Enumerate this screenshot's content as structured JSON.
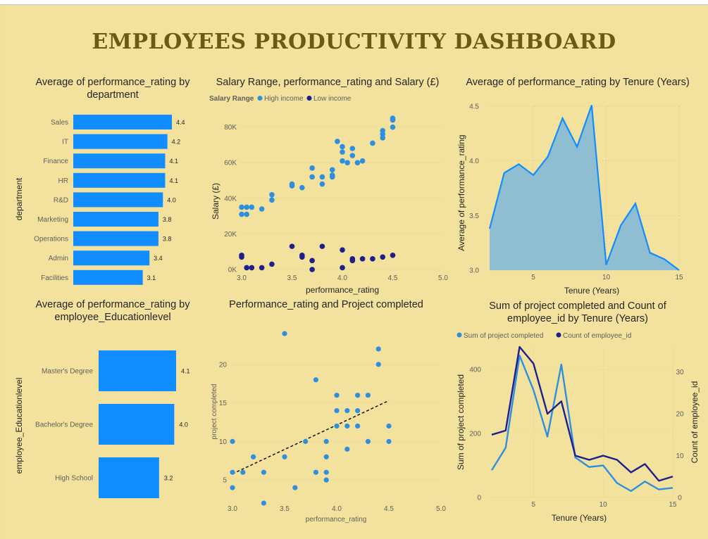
{
  "dashboard": {
    "title": "EMPLOYEES PRODUCTIVITY DASHBOARD"
  },
  "colors": {
    "accent": "#118DFF",
    "dark": "#1E1E8C",
    "area_fill": "#8FBDD1",
    "title": "#6A5A12",
    "background": "#F3E29D"
  },
  "chart_data": [
    {
      "id": "dept",
      "type": "bar",
      "orientation": "horizontal",
      "title": "Average of performance_rating by department",
      "ylabel": "department",
      "categories": [
        "Sales",
        "IT",
        "Finance",
        "HR",
        "R&D",
        "Marketing",
        "Operations",
        "Admin",
        "Facilities"
      ],
      "values": [
        4.4,
        4.2,
        4.1,
        4.1,
        4.0,
        3.8,
        3.8,
        3.4,
        3.1
      ],
      "value_labels": [
        "4.4",
        "4.2",
        "4.1",
        "4.1",
        "4.0",
        "3.8",
        "3.8",
        "3.4",
        "3.1"
      ],
      "color": "#118DFF"
    },
    {
      "id": "salary",
      "type": "scatter",
      "title": "Salary Range, performance_rating and Salary (£)",
      "legend_title": "Salary Range",
      "legend": "top-left",
      "xlabel": "performance_rating",
      "ylabel": "Salary (£)",
      "xlim": [
        3.0,
        5.0
      ],
      "ylim": [
        0,
        90000
      ],
      "xticks": [
        "3.0",
        "3.5",
        "4.0",
        "4.5",
        "5.0"
      ],
      "yticks": [
        "0K",
        "20K",
        "40K",
        "60K",
        "80K"
      ],
      "series": [
        {
          "name": "High income",
          "color": "#2E8FE0",
          "points": [
            [
              3.0,
              35000
            ],
            [
              3.0,
              31000
            ],
            [
              3.05,
              31000
            ],
            [
              3.05,
              35000
            ],
            [
              3.1,
              35000
            ],
            [
              3.2,
              34000
            ],
            [
              3.3,
              39000
            ],
            [
              3.3,
              42000
            ],
            [
              3.5,
              48000
            ],
            [
              3.5,
              47000
            ],
            [
              3.6,
              46000
            ],
            [
              3.7,
              52000
            ],
            [
              3.7,
              57000
            ],
            [
              3.8,
              52000
            ],
            [
              3.8,
              48000
            ],
            [
              3.9,
              52000
            ],
            [
              3.9,
              56000
            ],
            [
              3.9,
              53000
            ],
            [
              3.95,
              72000
            ],
            [
              4.0,
              69000
            ],
            [
              4.0,
              66000
            ],
            [
              4.0,
              61000
            ],
            [
              4.05,
              60000
            ],
            [
              4.1,
              68000
            ],
            [
              4.1,
              64000
            ],
            [
              4.15,
              60000
            ],
            [
              4.2,
              61000
            ],
            [
              4.3,
              71000
            ],
            [
              4.4,
              76000
            ],
            [
              4.4,
              74000
            ],
            [
              4.4,
              78000
            ],
            [
              4.5,
              85000
            ],
            [
              4.5,
              84000
            ],
            [
              4.5,
              80000
            ]
          ]
        },
        {
          "name": "Low income",
          "color": "#1E1E8C",
          "points": [
            [
              3.0,
              8000
            ],
            [
              3.0,
              7000
            ],
            [
              3.05,
              1000
            ],
            [
              3.1,
              1000
            ],
            [
              3.2,
              1000
            ],
            [
              3.3,
              3000
            ],
            [
              3.5,
              13000
            ],
            [
              3.6,
              7000
            ],
            [
              3.6,
              8000
            ],
            [
              3.7,
              5000
            ],
            [
              3.7,
              0
            ],
            [
              3.8,
              13000
            ],
            [
              4.0,
              11000
            ],
            [
              4.0,
              1000
            ],
            [
              4.1,
              6000
            ],
            [
              4.1,
              5000
            ],
            [
              4.2,
              6000
            ],
            [
              4.3,
              6000
            ],
            [
              4.4,
              7000
            ],
            [
              4.5,
              8000
            ]
          ]
        }
      ]
    },
    {
      "id": "tenure_area",
      "type": "area",
      "title": "Average of performance_rating by Tenure (Years)",
      "xlabel": "Tenure (Years)",
      "ylabel": "Average of performance_rating",
      "xlim": [
        2,
        15
      ],
      "ylim": [
        3.0,
        4.5
      ],
      "xticks": [
        "5",
        "10",
        "15"
      ],
      "yticks": [
        "3.0",
        "3.5",
        "4.0",
        "4.5"
      ],
      "x": [
        2,
        3,
        4,
        5,
        6,
        7,
        8,
        9,
        10,
        11,
        12,
        13,
        14,
        15
      ],
      "values": [
        3.38,
        3.89,
        3.97,
        3.87,
        4.04,
        4.39,
        4.13,
        4.51,
        3.05,
        3.41,
        3.61,
        3.16,
        3.1,
        3.0
      ]
    },
    {
      "id": "education",
      "type": "bar",
      "orientation": "horizontal",
      "title": "Average of performance_rating by employee_Educationlevel",
      "ylabel": "employee_Educationlevel",
      "categories": [
        "Master's Degree",
        "Bachelor's Degree",
        "High School"
      ],
      "values": [
        4.1,
        4.0,
        3.2
      ],
      "value_labels": [
        "4.1",
        "4.0",
        "3.2"
      ],
      "color": "#118DFF"
    },
    {
      "id": "projects",
      "type": "scatter",
      "title": "Performance_rating and Project completed",
      "xlabel": "performance_rating",
      "ylabel": "project completed",
      "xlim": [
        3.0,
        5.0
      ],
      "ylim": [
        2,
        23
      ],
      "xticks": [
        "3.0",
        "3.5",
        "4.0",
        "4.5",
        "5.0"
      ],
      "yticks": [
        "5",
        "10",
        "15",
        "20"
      ],
      "trend_line": [
        [
          3.0,
          5.8
        ],
        [
          4.5,
          15.3
        ]
      ],
      "series": [
        {
          "name": "",
          "color": "#2E8FE0",
          "points": [
            [
              3.0,
              10
            ],
            [
              3.0,
              4
            ],
            [
              3.0,
              6
            ],
            [
              3.1,
              6
            ],
            [
              3.2,
              8
            ],
            [
              3.3,
              6
            ],
            [
              3.3,
              2
            ],
            [
              3.5,
              24
            ],
            [
              3.5,
              8
            ],
            [
              3.6,
              4
            ],
            [
              3.7,
              10
            ],
            [
              3.8,
              18
            ],
            [
              3.8,
              6
            ],
            [
              3.9,
              8
            ],
            [
              3.9,
              10
            ],
            [
              3.9,
              6
            ],
            [
              3.9,
              5
            ],
            [
              4.0,
              16
            ],
            [
              4.0,
              14
            ],
            [
              4.0,
              12
            ],
            [
              4.1,
              14
            ],
            [
              4.1,
              12
            ],
            [
              4.1,
              9
            ],
            [
              4.2,
              16
            ],
            [
              4.2,
              14
            ],
            [
              4.2,
              12
            ],
            [
              4.3,
              16
            ],
            [
              4.3,
              10
            ],
            [
              4.4,
              22
            ],
            [
              4.4,
              20
            ],
            [
              4.5,
              12
            ],
            [
              4.5,
              10
            ]
          ]
        }
      ]
    },
    {
      "id": "tenure_lines",
      "type": "line",
      "title": "Sum of project completed and Count of employee_id by Tenure (Years)",
      "legend": "top-left",
      "xlabel": "Tenure (Years)",
      "ylabel": "Sum of project completed",
      "ylabel2": "Count of employee_id",
      "xlim": [
        2,
        15
      ],
      "ylim": [
        0,
        470
      ],
      "ylim2": [
        0,
        36
      ],
      "xticks": [
        "5",
        "10",
        "15"
      ],
      "yticks": [
        "0",
        "200",
        "400"
      ],
      "yticks2": [
        "0",
        "10",
        "20",
        "30"
      ],
      "x": [
        2,
        3,
        4,
        5,
        6,
        7,
        8,
        9,
        10,
        11,
        12,
        13,
        14,
        15
      ],
      "series": [
        {
          "name": "Sum of project completed",
          "axis": "left",
          "color": "#2E8FE0",
          "values": [
            85,
            155,
            443,
            335,
            190,
            415,
            125,
            95,
            100,
            45,
            20,
            50,
            25,
            30
          ]
        },
        {
          "name": "Count of employee_id",
          "axis": "right",
          "color": "#1E1E8C",
          "values": [
            15,
            16,
            36,
            32,
            20,
            23,
            10,
            9,
            10,
            9,
            6,
            8,
            4,
            5
          ]
        }
      ]
    }
  ]
}
